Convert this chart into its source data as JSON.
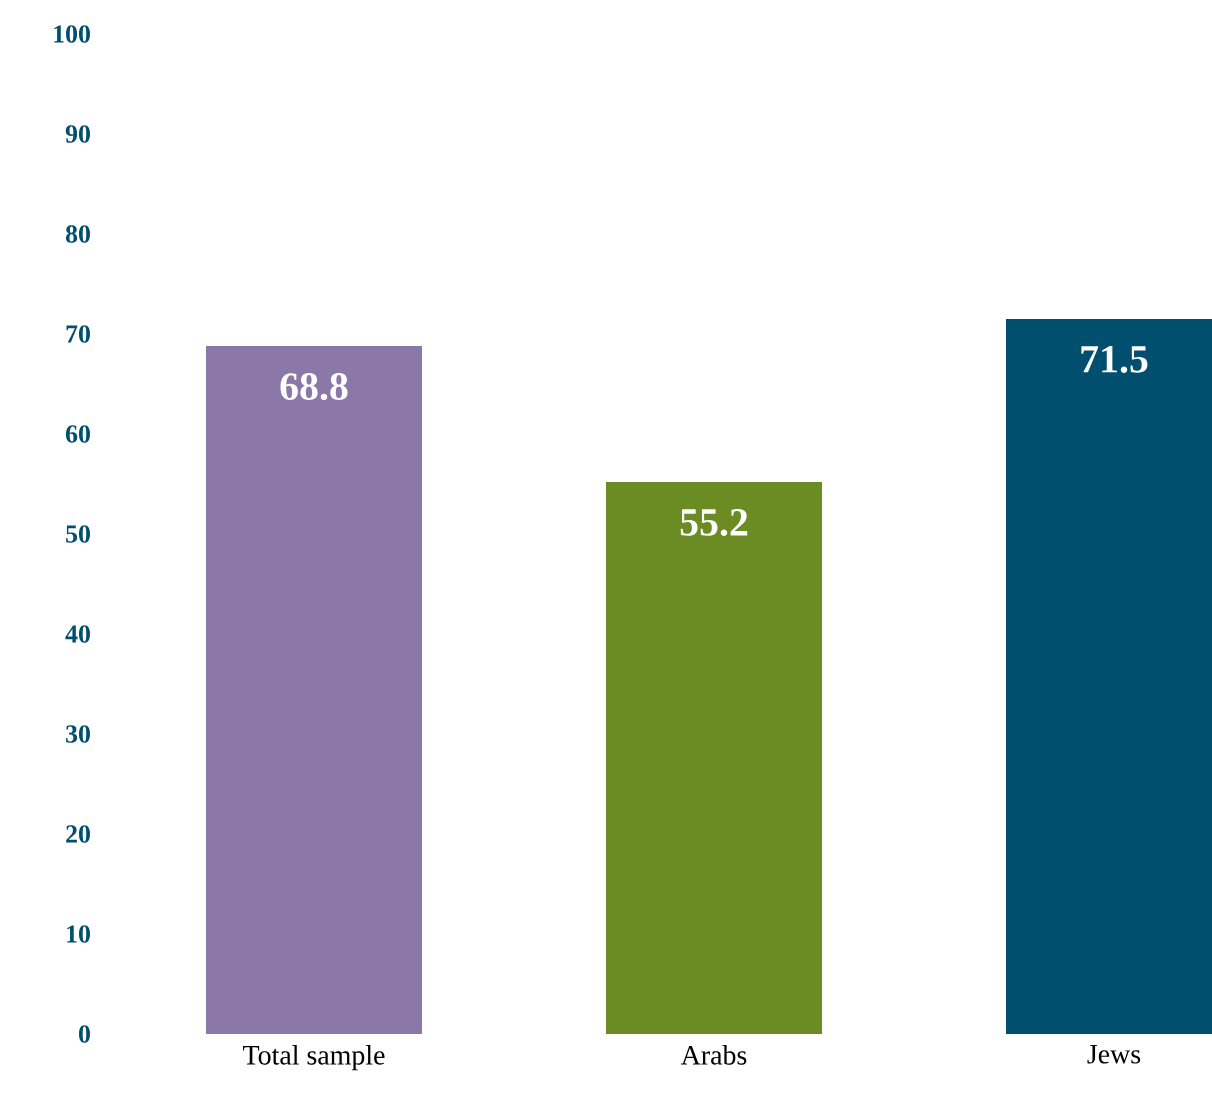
{
  "chart_data": {
    "type": "bar",
    "categories": [
      "Total sample",
      "Arabs",
      "Jews"
    ],
    "values": [
      68.8,
      55.2,
      71.5
    ],
    "colors": [
      "#8b78a8",
      "#6b8c23",
      "#004f6e"
    ],
    "ylim": [
      0,
      100
    ],
    "yticks": [
      0,
      10,
      20,
      30,
      40,
      50,
      60,
      70,
      80,
      90,
      100
    ],
    "data_labels": true
  }
}
